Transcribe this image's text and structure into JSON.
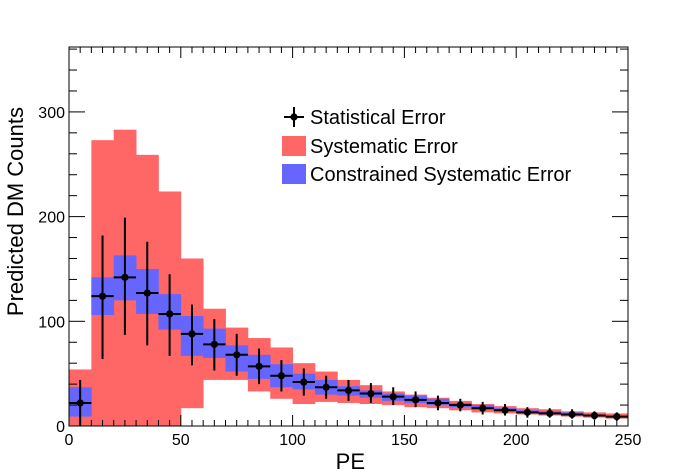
{
  "chart_data": {
    "type": "bar",
    "xlabel": "PE",
    "ylabel": "Predicted DM Counts",
    "xlim": [
      0,
      250
    ],
    "ylim": [
      0,
      362
    ],
    "x_ticks": [
      0,
      50,
      100,
      150,
      200,
      250
    ],
    "y_ticks": [
      0,
      100,
      200,
      300
    ],
    "bin_width": 10,
    "bin_centers": [
      5,
      15,
      25,
      35,
      45,
      55,
      65,
      75,
      85,
      95,
      105,
      115,
      125,
      135,
      145,
      155,
      165,
      175,
      185,
      195,
      205,
      215,
      225,
      235,
      245
    ],
    "series": [
      {
        "name": "Statistical Error",
        "color": "#000000",
        "values": [
          22,
          124,
          142,
          127,
          107,
          88,
          78,
          68,
          57,
          48,
          42,
          37,
          34,
          31,
          28,
          25,
          22,
          20,
          17,
          15,
          13,
          12,
          11,
          10,
          9
        ],
        "err_low": [
          22,
          60,
          55,
          50,
          40,
          30,
          25,
          20,
          17,
          15,
          13,
          11,
          10,
          9,
          8,
          7,
          7,
          6,
          6,
          5,
          5,
          4,
          4,
          4,
          4
        ],
        "err_high": [
          22,
          58,
          57,
          49,
          38,
          28,
          24,
          20,
          17,
          15,
          13,
          11,
          10,
          10,
          9,
          8,
          7,
          6,
          6,
          6,
          5,
          5,
          5,
          4,
          4
        ]
      },
      {
        "name": "Systematic Error",
        "color": "#ff6666",
        "lower": [
          0,
          0,
          0,
          0,
          0,
          17,
          44,
          44,
          33,
          26,
          21,
          23,
          22,
          21,
          20,
          18,
          17,
          15,
          13,
          12,
          11,
          10,
          9,
          8,
          7
        ],
        "upper": [
          54,
          273,
          283,
          259,
          224,
          160,
          112,
          94,
          84,
          75,
          60,
          52,
          44,
          39,
          33,
          30,
          27,
          24,
          21,
          19,
          17,
          16,
          14,
          13,
          12
        ]
      },
      {
        "name": "Constrained Systematic Error",
        "color": "#6666ff",
        "lower": [
          9,
          106,
          120,
          107,
          92,
          67,
          65,
          52,
          45,
          37,
          35,
          30,
          29,
          27,
          24,
          22,
          20,
          18,
          16,
          14,
          12,
          11,
          10,
          9,
          8
        ],
        "upper": [
          37,
          142,
          163,
          150,
          126,
          105,
          93,
          77,
          68,
          59,
          50,
          44,
          38,
          34,
          31,
          29,
          26,
          22,
          20,
          17,
          15,
          14,
          13,
          11,
          10
        ]
      }
    ],
    "legend": {
      "placement": "top-right",
      "items": [
        {
          "label": "Statistical Error",
          "style": "marker",
          "color": "#000000"
        },
        {
          "label": "Systematic Error",
          "style": "box",
          "color": "#ff6666"
        },
        {
          "label": "Constrained Systematic Error",
          "style": "box",
          "color": "#6666ff"
        }
      ]
    },
    "grid": false
  }
}
